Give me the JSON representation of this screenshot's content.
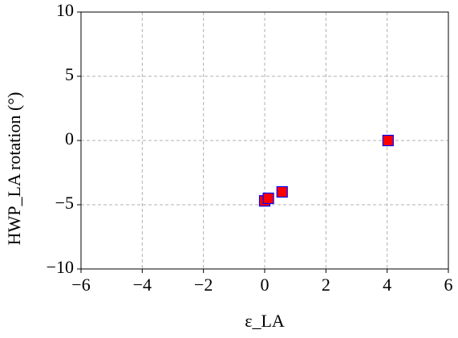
{
  "chart_data": {
    "type": "scatter",
    "x_label": "ε_LA",
    "y_label": "HWP_LA  rotation (°)",
    "series": [
      {
        "color": "#ff0000",
        "edge_color": "#0000ff",
        "marker": "square",
        "x": [
          0.0,
          0.12,
          0.57,
          4.03
        ],
        "values": [
          -4.7,
          -4.5,
          -4.0,
          0.0
        ]
      }
    ],
    "xlim": [
      -6,
      6
    ],
    "xticks": [
      {
        "value": -6,
        "label": "−6"
      },
      {
        "value": -4,
        "label": "−4"
      },
      {
        "value": -2,
        "label": "−2"
      },
      0,
      2,
      4,
      6
    ],
    "ylim": [
      -10,
      10
    ],
    "yticks": [
      {
        "value": -10,
        "label": "−10"
      },
      {
        "value": -5,
        "label": "−5"
      },
      0,
      5,
      10
    ],
    "grid": true
  }
}
